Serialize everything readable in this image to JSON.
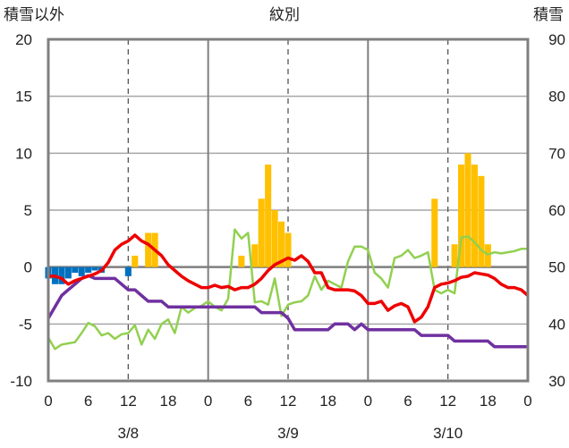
{
  "chart_data": {
    "type": "bar+line",
    "title": "紋別",
    "left_axis": {
      "label": "積雪以外",
      "ticks": [
        20,
        15,
        10,
        5,
        0,
        -5,
        -10
      ],
      "range": [
        -10,
        20
      ]
    },
    "right_axis": {
      "label": "積雪",
      "ticks": [
        90,
        80,
        70,
        60,
        50,
        40,
        30
      ],
      "range": [
        30,
        90
      ]
    },
    "x_axis": {
      "range_hours": [
        0,
        72
      ],
      "tick_labels": [
        "0",
        "6",
        "12",
        "18",
        "0",
        "6",
        "12",
        "18",
        "0",
        "6",
        "12",
        "18",
        "0"
      ],
      "date_labels": [
        {
          "label": "3/8",
          "hour": 12
        },
        {
          "label": "3/9",
          "hour": 36
        },
        {
          "label": "3/10",
          "hour": 60
        }
      ]
    },
    "grid": {
      "solid_vertical_hours": [
        24,
        48
      ],
      "dashed_vertical_hours": [
        12,
        36,
        60
      ],
      "horizontal_values": [
        15,
        10,
        5,
        -5
      ]
    },
    "colors": {
      "red": "#ee0000",
      "green": "#92d050",
      "purple": "#7030a0",
      "orange": "#ffc000",
      "blue": "#0070c0",
      "frame": "#7f7f7f"
    },
    "series": [
      {
        "color": "red",
        "axis": "left",
        "points": [
          [
            0,
            -0.8
          ],
          [
            1,
            -0.8
          ],
          [
            2,
            -1
          ],
          [
            3,
            -1.5
          ],
          [
            4,
            -1.2
          ],
          [
            5,
            -1
          ],
          [
            6,
            -0.8
          ],
          [
            7,
            -0.6
          ],
          [
            8,
            -0.3
          ],
          [
            9,
            0.4
          ],
          [
            10,
            1.5
          ],
          [
            11,
            2
          ],
          [
            12,
            2.3
          ],
          [
            13,
            2.8
          ],
          [
            14,
            2.3
          ],
          [
            15,
            2
          ],
          [
            16,
            1.5
          ],
          [
            17,
            1
          ],
          [
            18,
            0.2
          ],
          [
            19,
            -0.3
          ],
          [
            20,
            -0.8
          ],
          [
            21,
            -1.2
          ],
          [
            22,
            -1.5
          ],
          [
            23,
            -1.8
          ],
          [
            24,
            -1.8
          ],
          [
            25,
            -1.6
          ],
          [
            26,
            -1.8
          ],
          [
            27,
            -1.7
          ],
          [
            28,
            -2
          ],
          [
            29,
            -1.8
          ],
          [
            30,
            -1.8
          ],
          [
            31,
            -1.5
          ],
          [
            32,
            -1
          ],
          [
            33,
            -0.3
          ],
          [
            34,
            0.2
          ],
          [
            35,
            0.5
          ],
          [
            36,
            0.8
          ],
          [
            37,
            0.6
          ],
          [
            38,
            1
          ],
          [
            39,
            0.5
          ],
          [
            40,
            -0.5
          ],
          [
            41,
            -0.5
          ],
          [
            42,
            -1.8
          ],
          [
            43,
            -2
          ],
          [
            44,
            -2
          ],
          [
            45,
            -2
          ],
          [
            46,
            -2.1
          ],
          [
            47,
            -2.5
          ],
          [
            48,
            -3.2
          ],
          [
            49,
            -3.2
          ],
          [
            50,
            -3
          ],
          [
            51,
            -3.8
          ],
          [
            52,
            -3.4
          ],
          [
            53,
            -3.2
          ],
          [
            54,
            -3.5
          ],
          [
            55,
            -4.8
          ],
          [
            56,
            -4.4
          ],
          [
            57,
            -3.5
          ],
          [
            58,
            -1.8
          ],
          [
            59,
            -1.5
          ],
          [
            60,
            -1.4
          ],
          [
            61,
            -1.2
          ],
          [
            62,
            -0.9
          ],
          [
            63,
            -0.8
          ],
          [
            64,
            -0.5
          ],
          [
            65,
            -0.6
          ],
          [
            66,
            -0.7
          ],
          [
            67,
            -1
          ],
          [
            68,
            -1.5
          ],
          [
            69,
            -1.8
          ],
          [
            70,
            -1.8
          ],
          [
            71,
            -2
          ],
          [
            72,
            -2.5
          ]
        ]
      },
      {
        "color": "green",
        "axis": "left",
        "points": [
          [
            0,
            -6.2
          ],
          [
            1,
            -7.2
          ],
          [
            2,
            -6.8
          ],
          [
            3,
            -6.7
          ],
          [
            4,
            -6.6
          ],
          [
            5,
            -5.8
          ],
          [
            6,
            -4.9
          ],
          [
            7,
            -5.2
          ],
          [
            8,
            -6
          ],
          [
            9,
            -5.8
          ],
          [
            10,
            -6.3
          ],
          [
            11,
            -5.9
          ],
          [
            12,
            -5.8
          ],
          [
            13,
            -5.1
          ],
          [
            14,
            -6.8
          ],
          [
            15,
            -5.5
          ],
          [
            16,
            -6.3
          ],
          [
            17,
            -5
          ],
          [
            18,
            -4.6
          ],
          [
            19,
            -5.8
          ],
          [
            20,
            -3.5
          ],
          [
            21,
            -4
          ],
          [
            22,
            -3.6
          ],
          [
            23,
            -3.4
          ],
          [
            24,
            -3
          ],
          [
            25,
            -3.5
          ],
          [
            26,
            -3.8
          ],
          [
            27,
            -2.8
          ],
          [
            28,
            3.3
          ],
          [
            29,
            2.5
          ],
          [
            30,
            3
          ],
          [
            31,
            -3.1
          ],
          [
            32,
            -3
          ],
          [
            33,
            -3.3
          ],
          [
            34,
            -1
          ],
          [
            35,
            -4.3
          ],
          [
            36,
            -3.3
          ],
          [
            37,
            -3.1
          ],
          [
            38,
            -3
          ],
          [
            39,
            -2.5
          ],
          [
            40,
            -0.8
          ],
          [
            41,
            -2
          ],
          [
            42,
            -1.2
          ],
          [
            43,
            -1.5
          ],
          [
            44,
            -1.8
          ],
          [
            45,
            0.5
          ],
          [
            46,
            1.8
          ],
          [
            47,
            1.8
          ],
          [
            48,
            1.5
          ],
          [
            49,
            -0.5
          ],
          [
            50,
            -1
          ],
          [
            51,
            -1.8
          ],
          [
            52,
            0.8
          ],
          [
            53,
            1
          ],
          [
            54,
            1.5
          ],
          [
            55,
            0.8
          ],
          [
            56,
            1
          ],
          [
            57,
            1.3
          ],
          [
            58,
            -2
          ],
          [
            59,
            -2.3
          ],
          [
            60,
            -2
          ],
          [
            61,
            -2.3
          ],
          [
            62,
            2.6
          ],
          [
            63,
            2.7
          ],
          [
            64,
            2.2
          ],
          [
            65,
            1.5
          ],
          [
            66,
            1.1
          ],
          [
            67,
            1.3
          ],
          [
            68,
            1.2
          ],
          [
            69,
            1.3
          ],
          [
            70,
            1.4
          ],
          [
            71,
            1.6
          ],
          [
            72,
            1.6
          ]
        ]
      },
      {
        "color": "purple",
        "axis": "right",
        "points": [
          [
            0,
            41
          ],
          [
            1,
            43
          ],
          [
            2,
            45
          ],
          [
            3,
            46
          ],
          [
            4,
            47
          ],
          [
            5,
            48
          ],
          [
            6,
            48.5
          ],
          [
            7,
            48
          ],
          [
            8,
            48
          ],
          [
            9,
            48
          ],
          [
            10,
            48
          ],
          [
            11,
            47
          ],
          [
            12,
            46
          ],
          [
            13,
            46
          ],
          [
            14,
            45
          ],
          [
            15,
            44
          ],
          [
            16,
            44
          ],
          [
            17,
            44
          ],
          [
            18,
            43
          ],
          [
            19,
            43
          ],
          [
            20,
            43
          ],
          [
            21,
            43
          ],
          [
            22,
            43
          ],
          [
            23,
            43
          ],
          [
            24,
            43
          ],
          [
            25,
            43
          ],
          [
            26,
            43
          ],
          [
            27,
            43
          ],
          [
            28,
            43
          ],
          [
            29,
            43
          ],
          [
            30,
            43
          ],
          [
            31,
            43
          ],
          [
            32,
            42
          ],
          [
            33,
            42
          ],
          [
            34,
            42
          ],
          [
            35,
            42
          ],
          [
            36,
            41
          ],
          [
            37,
            39
          ],
          [
            38,
            39
          ],
          [
            39,
            39
          ],
          [
            40,
            39
          ],
          [
            41,
            39
          ],
          [
            42,
            39
          ],
          [
            43,
            40
          ],
          [
            44,
            40
          ],
          [
            45,
            40
          ],
          [
            46,
            39
          ],
          [
            47,
            40
          ],
          [
            48,
            39
          ],
          [
            49,
            39
          ],
          [
            50,
            39
          ],
          [
            51,
            39
          ],
          [
            52,
            39
          ],
          [
            53,
            39
          ],
          [
            54,
            39
          ],
          [
            55,
            39
          ],
          [
            56,
            38
          ],
          [
            57,
            38
          ],
          [
            58,
            38
          ],
          [
            59,
            38
          ],
          [
            60,
            38
          ],
          [
            61,
            37
          ],
          [
            62,
            37
          ],
          [
            63,
            37
          ],
          [
            64,
            37
          ],
          [
            65,
            37
          ],
          [
            66,
            37
          ],
          [
            67,
            36
          ],
          [
            68,
            36
          ],
          [
            69,
            36
          ],
          [
            70,
            36
          ],
          [
            71,
            36
          ],
          [
            72,
            36
          ]
        ]
      }
    ],
    "bars_orange": {
      "axis": "left",
      "values": [
        [
          9,
          0
        ],
        [
          12,
          0
        ],
        [
          13,
          1
        ],
        [
          15,
          3
        ],
        [
          16,
          3
        ],
        [
          21,
          0
        ],
        [
          29,
          1
        ],
        [
          31,
          2
        ],
        [
          32,
          6
        ],
        [
          33,
          9
        ],
        [
          34,
          5
        ],
        [
          35,
          4
        ],
        [
          36,
          3
        ],
        [
          58,
          6
        ],
        [
          61,
          2
        ],
        [
          62,
          9
        ],
        [
          63,
          10
        ],
        [
          64,
          9
        ],
        [
          65,
          8
        ],
        [
          66,
          2
        ]
      ]
    },
    "bars_blue": {
      "axis": "left",
      "values": [
        [
          0,
          -1
        ],
        [
          1,
          -1.5
        ],
        [
          2,
          -1.5
        ],
        [
          3,
          -1
        ],
        [
          4,
          -0.5
        ],
        [
          5,
          -0.8
        ],
        [
          6,
          -0.5
        ],
        [
          7,
          -0.3
        ],
        [
          8,
          -0.5
        ],
        [
          12,
          -0.8
        ]
      ]
    }
  }
}
